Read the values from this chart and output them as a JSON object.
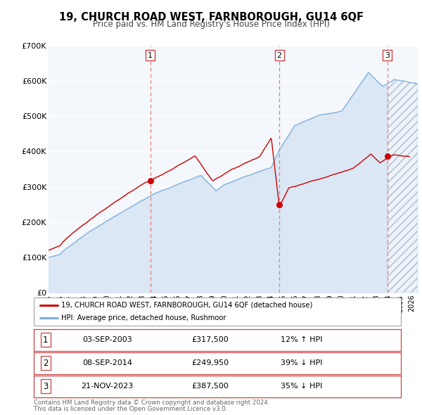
{
  "title": "19, CHURCH ROAD WEST, FARNBOROUGH, GU14 6QF",
  "subtitle": "Price paid vs. HM Land Registry's House Price Index (HPI)",
  "xlim": [
    1995.0,
    2026.5
  ],
  "ylim": [
    0,
    700000
  ],
  "yticks": [
    0,
    100000,
    200000,
    300000,
    400000,
    500000,
    600000,
    700000
  ],
  "ytick_labels": [
    "£0",
    "£100K",
    "£200K",
    "£300K",
    "£400K",
    "£500K",
    "£600K",
    "£700K"
  ],
  "red_line_color": "#cc0000",
  "blue_line_color": "#7aacdc",
  "fill_color": "#c8daf0",
  "vline_color": "#e87878",
  "grid_color": "#dddddd",
  "hatch_color": "#cccccc",
  "sale_events": [
    {
      "label": "1",
      "year": 2003.67,
      "price": 317500,
      "hpi_pct": "12% ↑ HPI",
      "date_str": "03-SEP-2003",
      "price_str": "£317,500"
    },
    {
      "label": "2",
      "year": 2014.69,
      "price": 249950,
      "hpi_pct": "39% ↓ HPI",
      "date_str": "08-SEP-2014",
      "price_str": "£249,950"
    },
    {
      "label": "3",
      "year": 2023.9,
      "price": 387500,
      "hpi_pct": "35% ↓ HPI",
      "date_str": "21-NOV-2023",
      "price_str": "£387,500"
    }
  ],
  "legend_line1": "19, CHURCH ROAD WEST, FARNBOROUGH, GU14 6QF (detached house)",
  "legend_line2": "HPI: Average price, detached house, Rushmoor",
  "footer_line1": "Contains HM Land Registry data © Crown copyright and database right 2024.",
  "footer_line2": "This data is licensed under the Open Government Licence v3.0."
}
